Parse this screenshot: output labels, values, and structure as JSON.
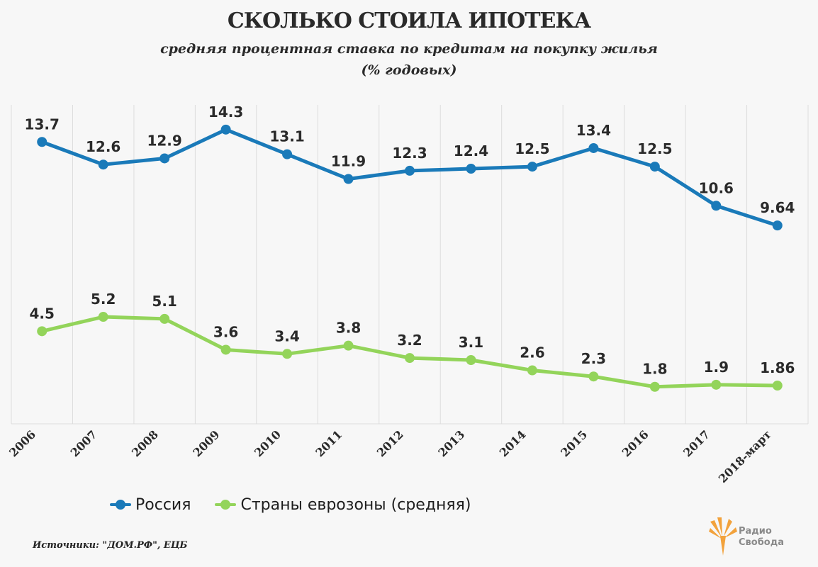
{
  "header": {
    "title": "СКОЛЬКО СТОИЛА ИПОТЕКА",
    "subtitle_line1": "средняя процентная ставка по кредитам на покупку жилья",
    "subtitle_line2": "(% годовых)"
  },
  "chart_data": {
    "type": "line",
    "title": "СКОЛЬКО СТОИЛА ИПОТЕКА",
    "subtitle": "средняя процентная ставка по кредитам на покупку жилья (% годовых)",
    "xlabel": "",
    "ylabel": "",
    "categories": [
      "2006",
      "2007",
      "2008",
      "2009",
      "2010",
      "2011",
      "2012",
      "2013",
      "2014",
      "2015",
      "2016",
      "2017",
      "2018-март"
    ],
    "series": [
      {
        "name": "Россия",
        "color": "#1a7ab9",
        "values": [
          13.7,
          12.6,
          12.9,
          14.3,
          13.1,
          11.9,
          12.3,
          12.4,
          12.5,
          13.4,
          12.5,
          10.6,
          9.64
        ],
        "labels": [
          "13.7",
          "12.6",
          "12.9",
          "14.3",
          "13.1",
          "11.9",
          "12.3",
          "12.4",
          "12.5",
          "13.4",
          "12.5",
          "10.6",
          "9.64"
        ]
      },
      {
        "name": "Страны еврозоны (средняя)",
        "color": "#93d45a",
        "values": [
          4.5,
          5.2,
          5.1,
          3.6,
          3.4,
          3.8,
          3.2,
          3.1,
          2.6,
          2.3,
          1.8,
          1.9,
          1.86
        ],
        "labels": [
          "4.5",
          "5.2",
          "5.1",
          "3.6",
          "3.4",
          "3.8",
          "3.2",
          "3.1",
          "2.6",
          "2.3",
          "1.8",
          "1.9",
          "1.86"
        ]
      }
    ],
    "ylim": [
      0,
      15.5
    ],
    "grid": "vertical",
    "legend": "bottom-left"
  },
  "legend": {
    "russia": "Россия",
    "eurozone": "Страны еврозоны (средняя)"
  },
  "footer": {
    "source": "Источники: \"ДОМ.РФ\", ЕЦБ",
    "logo_line1": "Радио",
    "logo_line2": "Свобода"
  },
  "colors": {
    "russia": "#1a7ab9",
    "eurozone": "#93d45a",
    "logo": "#f2a23c"
  }
}
